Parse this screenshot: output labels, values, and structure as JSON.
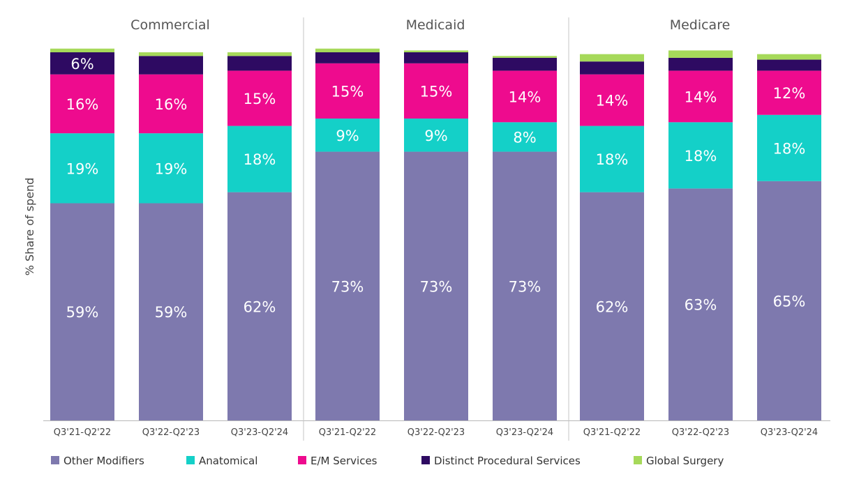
{
  "chart_data": {
    "type": "bar",
    "stacked": true,
    "ylabel": "% Share of spend",
    "ylim": [
      0,
      100
    ],
    "grid": false,
    "legend_position": "bottom",
    "categories": [
      "Q3'21-Q2'22",
      "Q3'22-Q2'23",
      "Q3'23-Q2'24"
    ],
    "groups": [
      {
        "name": "Commercial",
        "bars": [
          {
            "category": "Q3'21-Q2'22",
            "values": [
              59,
              19,
              16,
              6,
              1
            ],
            "labels": [
              "59%",
              "19%",
              "16%",
              "6%",
              ""
            ]
          },
          {
            "category": "Q3'22-Q2'23",
            "values": [
              59,
              19,
              16,
              5,
              1
            ],
            "labels": [
              "59%",
              "19%",
              "16%",
              "",
              ""
            ]
          },
          {
            "category": "Q3'23-Q2'24",
            "values": [
              62,
              18,
              15,
              4,
              1
            ],
            "labels": [
              "62%",
              "18%",
              "15%",
              "",
              ""
            ]
          }
        ]
      },
      {
        "name": "Medicaid",
        "bars": [
          {
            "category": "Q3'21-Q2'22",
            "values": [
              73,
              9,
              15,
              3,
              1
            ],
            "labels": [
              "73%",
              "9%",
              "15%",
              "",
              ""
            ]
          },
          {
            "category": "Q3'22-Q2'23",
            "values": [
              73,
              9,
              15,
              3,
              0.5
            ],
            "labels": [
              "73%",
              "9%",
              "15%",
              "",
              ""
            ]
          },
          {
            "category": "Q3'23-Q2'24",
            "values": [
              73,
              8,
              14,
              3.5,
              0.5
            ],
            "labels": [
              "73%",
              "8%",
              "14%",
              "",
              ""
            ]
          }
        ]
      },
      {
        "name": "Medicare",
        "bars": [
          {
            "category": "Q3'21-Q2'22",
            "values": [
              62,
              18,
              14,
              3.5,
              2
            ],
            "labels": [
              "62%",
              "18%",
              "14%",
              "",
              ""
            ]
          },
          {
            "category": "Q3'22-Q2'23",
            "values": [
              63,
              18,
              14,
              3.5,
              2
            ],
            "labels": [
              "63%",
              "18%",
              "14%",
              "",
              ""
            ]
          },
          {
            "category": "Q3'23-Q2'24",
            "values": [
              65,
              18,
              12,
              3,
              1.5
            ],
            "labels": [
              "65%",
              "18%",
              "12%",
              "",
              ""
            ]
          }
        ]
      }
    ],
    "series": [
      {
        "name": "Other Modifiers",
        "color": "#7e79ae"
      },
      {
        "name": "Anatomical",
        "color": "#14d0c8"
      },
      {
        "name": "E/M Services",
        "color": "#ee0b8e"
      },
      {
        "name": "Distinct Procedural Services",
        "color": "#2e0a62"
      },
      {
        "name": "Global Surgery",
        "color": "#a6d95a"
      }
    ]
  }
}
